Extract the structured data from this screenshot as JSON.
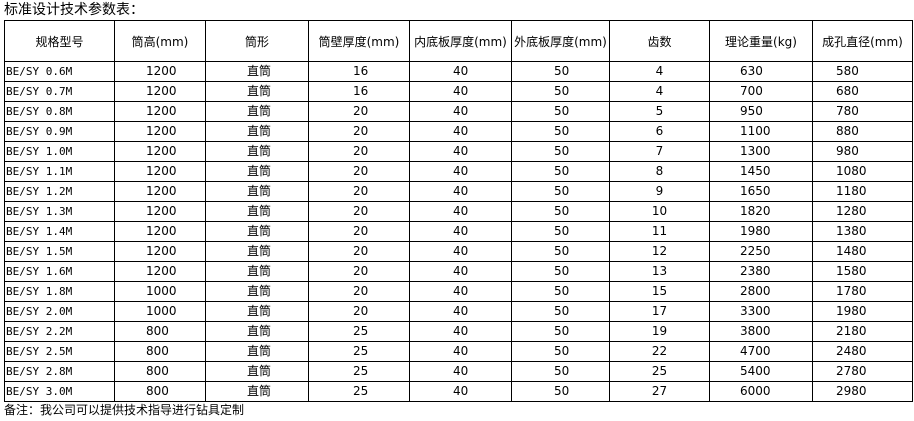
{
  "title": "标准设计技术参数表：",
  "table": {
    "header": [
      "规格型号",
      "筒高(mm)",
      "筒形",
      "筒壁厚度(mm)",
      "内底板厚度(mm)",
      "外底板厚度(mm)",
      "齿数",
      "理论重量(kg)",
      "成孔直径(mm)"
    ],
    "rows": [
      [
        "BE/SY 0.6M",
        "1200",
        "直筒",
        "16",
        "40",
        "50",
        "4",
        "630",
        "580"
      ],
      [
        "BE/SY 0.7M",
        "1200",
        "直筒",
        "16",
        "40",
        "50",
        "4",
        "700",
        "680"
      ],
      [
        "BE/SY 0.8M",
        "1200",
        "直筒",
        "20",
        "40",
        "50",
        "5",
        "950",
        "780"
      ],
      [
        "BE/SY 0.9M",
        "1200",
        "直筒",
        "20",
        "40",
        "50",
        "6",
        "1100",
        "880"
      ],
      [
        "BE/SY 1.0M",
        "1200",
        "直筒",
        "20",
        "40",
        "50",
        "7",
        "1300",
        "980"
      ],
      [
        "BE/SY 1.1M",
        "1200",
        "直筒",
        "20",
        "40",
        "50",
        "8",
        "1450",
        "1080"
      ],
      [
        "BE/SY 1.2M",
        "1200",
        "直筒",
        "20",
        "40",
        "50",
        "9",
        "1650",
        "1180"
      ],
      [
        "BE/SY 1.3M",
        "1200",
        "直筒",
        "20",
        "40",
        "50",
        "10",
        "1820",
        "1280"
      ],
      [
        "BE/SY 1.4M",
        "1200",
        "直筒",
        "20",
        "40",
        "50",
        "11",
        "1980",
        "1380"
      ],
      [
        "BE/SY 1.5M",
        "1200",
        "直筒",
        "20",
        "40",
        "50",
        "12",
        "2250",
        "1480"
      ],
      [
        "BE/SY 1.6M",
        "1200",
        "直筒",
        "20",
        "40",
        "50",
        "13",
        "2380",
        "1580"
      ],
      [
        "BE/SY 1.8M",
        "1000",
        "直筒",
        "20",
        "40",
        "50",
        "15",
        "2800",
        "1780"
      ],
      [
        "BE/SY 2.0M",
        "1000",
        "直筒",
        "20",
        "40",
        "50",
        "17",
        "3300",
        "1980"
      ],
      [
        "BE/SY 2.2M",
        "800",
        "直筒",
        "25",
        "40",
        "50",
        "19",
        "3800",
        "2180"
      ],
      [
        "BE/SY 2.5M",
        "800",
        "直筒",
        "25",
        "40",
        "50",
        "22",
        "4700",
        "2480"
      ],
      [
        "BE/SY 2.8M",
        "800",
        "直筒",
        "25",
        "40",
        "50",
        "25",
        "5400",
        "2780"
      ],
      [
        "BE/SY 3.0M",
        "800",
        "直筒",
        "25",
        "40",
        "50",
        "27",
        "6000",
        "2980"
      ]
    ]
  },
  "note": "备注：我公司可以提供技术指导进行钻具定制"
}
